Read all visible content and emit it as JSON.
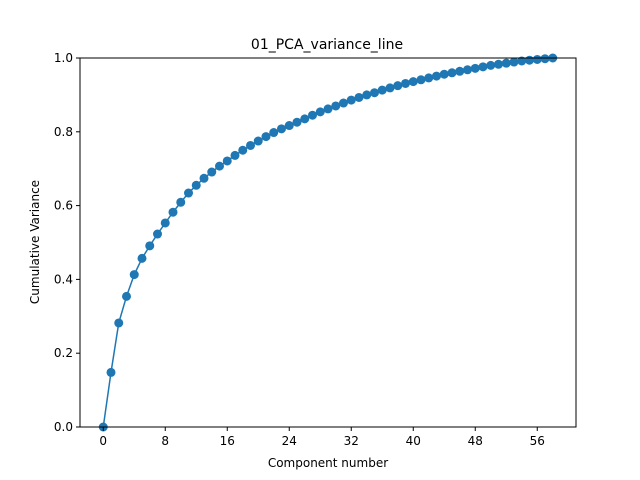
{
  "chart_data": {
    "type": "line",
    "title": "01_PCA_variance_line",
    "xlabel": "Component number",
    "ylabel": "Cumulative Variance",
    "xlim": [
      -3,
      61
    ],
    "ylim": [
      0.0,
      1.0
    ],
    "xticks": [
      0,
      8,
      16,
      24,
      32,
      40,
      48,
      56
    ],
    "yticks": [
      0.0,
      0.2,
      0.4,
      0.6,
      0.8,
      1.0
    ],
    "grid": false,
    "legend": "none",
    "marker": "circle",
    "color": "#1f77b4",
    "x": [
      0,
      1,
      2,
      3,
      4,
      5,
      6,
      7,
      8,
      9,
      10,
      11,
      12,
      13,
      14,
      15,
      16,
      17,
      18,
      19,
      20,
      21,
      22,
      23,
      24,
      25,
      26,
      27,
      28,
      29,
      30,
      31,
      32,
      33,
      34,
      35,
      36,
      37,
      38,
      39,
      40,
      41,
      42,
      43,
      44,
      45,
      46,
      47,
      48,
      49,
      50,
      51,
      52,
      53,
      54,
      55,
      56,
      57,
      58
    ],
    "y": [
      0.0,
      0.148,
      0.282,
      0.354,
      0.413,
      0.457,
      0.491,
      0.523,
      0.553,
      0.582,
      0.609,
      0.634,
      0.655,
      0.674,
      0.691,
      0.707,
      0.721,
      0.736,
      0.75,
      0.763,
      0.775,
      0.787,
      0.798,
      0.808,
      0.817,
      0.826,
      0.835,
      0.845,
      0.854,
      0.862,
      0.87,
      0.878,
      0.886,
      0.893,
      0.9,
      0.906,
      0.913,
      0.919,
      0.925,
      0.931,
      0.936,
      0.941,
      0.946,
      0.951,
      0.956,
      0.96,
      0.964,
      0.968,
      0.972,
      0.976,
      0.98,
      0.983,
      0.986,
      0.989,
      0.992,
      0.994,
      0.996,
      0.998,
      1.0
    ]
  }
}
